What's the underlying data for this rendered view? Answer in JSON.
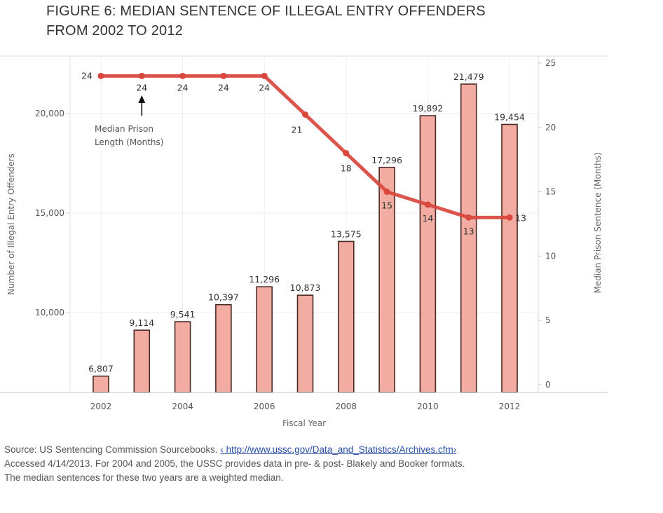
{
  "title_lines": [
    "FIGURE 6: MEDIAN SENTENCE OF ILLEGAL ENTRY OFFENDERS",
    "FROM 2002 TO 2012"
  ],
  "chart_data": {
    "type": "bar",
    "title": "FIGURE 6: MEDIAN SENTENCE OF ILLEGAL ENTRY OFFENDERS FROM 2002 TO 2012",
    "xlabel": "Fiscal Year",
    "ylabel": "Number of Illegal Entry Offenders",
    "y2label": "Median Prison Sentence (Months)",
    "categories": [
      "2002",
      "2003",
      "2004",
      "2005",
      "2006",
      "2007",
      "2008",
      "2009",
      "2010",
      "2011",
      "2012"
    ],
    "x_tick_labels": [
      "2002",
      "2004",
      "2006",
      "2008",
      "2010",
      "2012"
    ],
    "ylim": [
      6000,
      22900
    ],
    "y_ticks": [
      10000,
      15000,
      20000
    ],
    "y_tick_labels": [
      "10,000",
      "15,000",
      "20,000"
    ],
    "y2lim": [
      0,
      25
    ],
    "y2_ticks": [
      0,
      5,
      10,
      15,
      20,
      25
    ],
    "y2_tick_labels": [
      "0",
      "5",
      "10",
      "15",
      "20",
      "25"
    ],
    "grid": true,
    "series": [
      {
        "name": "Number of Illegal Entry Offenders",
        "type": "bar",
        "axis": "left",
        "color": "#f2aca2",
        "edge_color": "#4a2a26",
        "values": [
          6807,
          9114,
          9541,
          10397,
          11296,
          10873,
          13575,
          17296,
          19892,
          21479,
          19454
        ],
        "labels": [
          "6,807",
          "9,114",
          "9,541",
          "10,397",
          "11,296",
          "10,873",
          "13,575",
          "17,296",
          "19,892",
          "21,479",
          "19,454"
        ]
      },
      {
        "name": "Median Prison Length (Months)",
        "type": "line",
        "axis": "right",
        "color": "#d9473d",
        "values": [
          24,
          24,
          24,
          24,
          24,
          21,
          18,
          15,
          14,
          13,
          13
        ],
        "labels": [
          "24",
          "24",
          "24",
          "24",
          "24",
          "21",
          "18",
          "15",
          "14",
          "13",
          "13"
        ]
      }
    ],
    "annotations": [
      {
        "text_lines": [
          "Median Prison",
          "Length (Months)"
        ],
        "points_to": "2003",
        "arrow": "up"
      }
    ]
  },
  "source": {
    "prefix": "Source: US Sentencing Commission Sourcebooks. ",
    "link_text": "‹ http://www.ussc.gov/Data_and_Statistics/Archives.cfm›",
    "line2": "Accessed 4/14/2013. For 2004 and 2005, the USSC provides data in pre-  & post-  Blakely and Booker formats.",
    "line3": "The median sentences for these two years are a weighted median."
  }
}
